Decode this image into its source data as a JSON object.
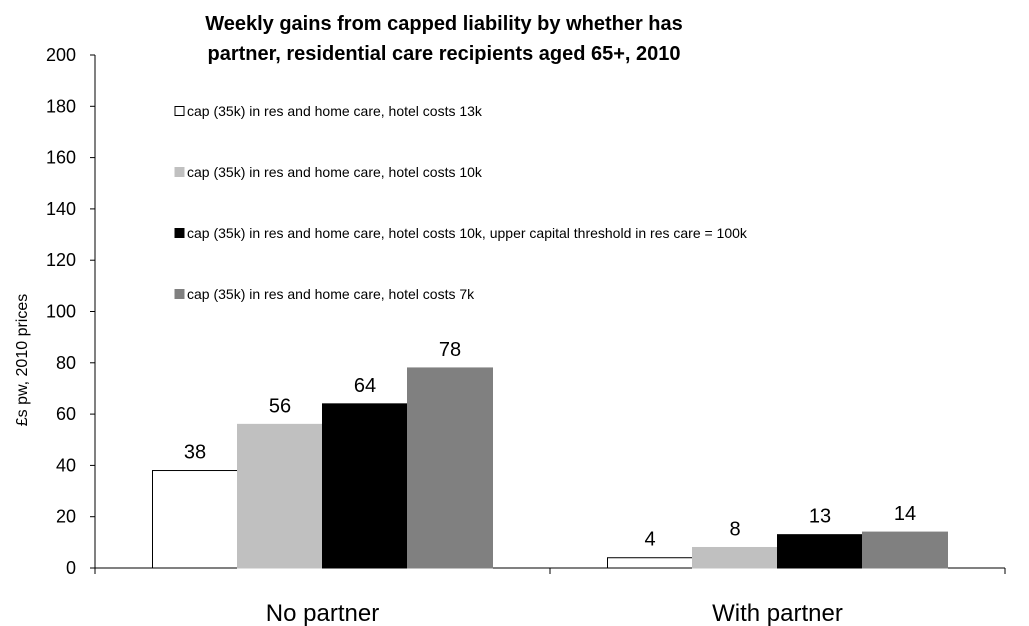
{
  "chart_data": {
    "type": "bar",
    "title_lines": [
      "Weekly gains from capped liability by whether has",
      "partner, residential care recipients aged 65+, 2010"
    ],
    "ylabel": "£s pw, 2010 prices",
    "xlabel": "",
    "ylim": [
      0,
      200
    ],
    "yticks": [
      0,
      20,
      40,
      60,
      80,
      100,
      120,
      140,
      160,
      180,
      200
    ],
    "categories": [
      "No partner",
      "With partner"
    ],
    "series": [
      {
        "name": "cap (35k) in res and home care, hotel costs 13k",
        "values": [
          38,
          4
        ],
        "color": "#ffffff",
        "stroke": "#000000"
      },
      {
        "name": "cap (35k) in res and home care, hotel costs 10k",
        "values": [
          56,
          8
        ],
        "color": "#c0c0c0",
        "stroke": "#c0c0c0"
      },
      {
        "name": "cap (35k) in res and home care, hotel costs 10k, upper capital threshold in res care = 100k",
        "values": [
          64,
          13
        ],
        "color": "#000000",
        "stroke": "#000000"
      },
      {
        "name": "cap (35k) in res and home care, hotel costs 7k",
        "values": [
          78,
          14
        ],
        "color": "#808080",
        "stroke": "#808080"
      }
    ],
    "legend_position": "top-left, inside plot",
    "grid": false
  }
}
